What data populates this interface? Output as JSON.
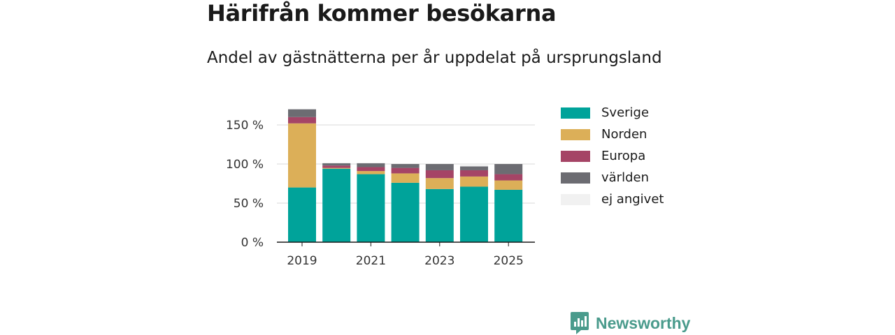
{
  "header": {
    "title": "Härifrån kommer besökarna",
    "subtitle": "Andel av gästnätterna per år uppdelat på ursprungsland"
  },
  "chart_data": {
    "type": "bar",
    "stacked": true,
    "title": "Härifrån kommer besökarna",
    "subtitle": "Andel av gästnätterna per år uppdelat på ursprungsland",
    "categories": [
      "2019",
      "2020",
      "2021",
      "2022",
      "2023",
      "2024",
      "2025"
    ],
    "x_tick_labels": [
      "2019",
      "2021",
      "2023",
      "2025"
    ],
    "y_tick_values": [
      0,
      50,
      100,
      150
    ],
    "y_tick_labels": [
      "0 %",
      "50 %",
      "100 %",
      "150 %"
    ],
    "ylim": [
      0,
      170
    ],
    "grid": true,
    "legend_position": "right",
    "series": [
      {
        "name": "Sverige",
        "color": "#00a39a",
        "values": [
          70,
          94,
          87,
          76,
          68,
          71,
          67
        ]
      },
      {
        "name": "Norden",
        "color": "#dcaf58",
        "values": [
          82,
          1,
          4,
          12,
          14,
          13,
          12
        ]
      },
      {
        "name": "Europa",
        "color": "#a54466",
        "values": [
          8,
          3,
          5,
          7,
          10,
          8,
          8
        ]
      },
      {
        "name": "världen",
        "color": "#6c6c72",
        "values": [
          10,
          3,
          5,
          5,
          8,
          5,
          13
        ]
      },
      {
        "name": "ej angivet",
        "color": "#f1f1f1",
        "values": [
          0,
          0,
          0,
          0,
          0,
          3,
          0
        ]
      }
    ]
  },
  "brand": {
    "name": "Newsworthy",
    "logo_icon": "newsworthy-logo-icon",
    "color": "#4a9b8c"
  }
}
